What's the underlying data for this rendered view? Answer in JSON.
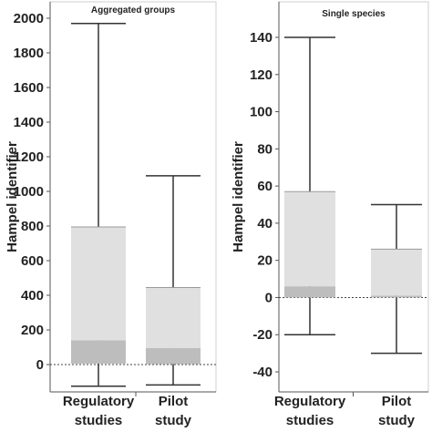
{
  "chart_data": [
    {
      "type": "box",
      "title": "Aggregated groups",
      "ylabel": "Hampel identifier",
      "ylim": [
        -130,
        2050
      ],
      "yticks": [
        0,
        200,
        400,
        600,
        800,
        1000,
        1200,
        1400,
        1600,
        1800,
        2000
      ],
      "ytick_labels": [
        "0",
        "200",
        "400",
        "600",
        "800",
        "1000",
        "1200",
        "1400",
        "1600",
        "1800",
        "2000"
      ],
      "reference_line": 0,
      "categories": [
        {
          "label_lines": [
            "Regulatory",
            "studies"
          ],
          "min": -125,
          "q1": 5,
          "median": 140,
          "q3": 795,
          "max": 1970
        },
        {
          "label_lines": [
            "Pilot",
            "study"
          ],
          "min": -118,
          "q1": 2,
          "median": 95,
          "q3": 445,
          "max": 1090
        }
      ],
      "colors": {
        "lower_box": "#bdbdbd",
        "upper_box": "#e0e0e0",
        "whisker": "#333333"
      }
    },
    {
      "type": "box",
      "title": "Single species",
      "ylabel": "Hampel identifier",
      "ylim": [
        -48,
        150
      ],
      "yticks": [
        -40,
        -20,
        0,
        20,
        40,
        60,
        80,
        100,
        120,
        140
      ],
      "ytick_labels": [
        "-40",
        "-20",
        "0",
        "20",
        "40",
        "60",
        "80",
        "100",
        "120",
        "140"
      ],
      "reference_line": 0,
      "categories": [
        {
          "label_lines": [
            "Regulatory",
            "studies"
          ],
          "min": -20,
          "q1": 0,
          "median": 6,
          "q3": 57,
          "max": 140
        },
        {
          "label_lines": [
            "Pilot",
            "study"
          ],
          "min": -30,
          "q1": 0,
          "median": 1,
          "q3": 26,
          "max": 50
        }
      ],
      "colors": {
        "lower_box": "#bdbdbd",
        "upper_box": "#e0e0e0",
        "whisker": "#333333"
      }
    }
  ]
}
